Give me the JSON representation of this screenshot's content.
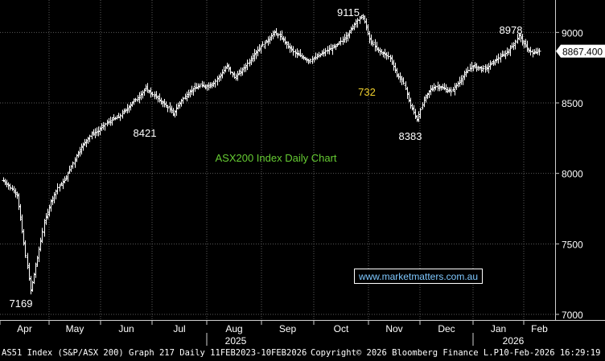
{
  "chart_data": {
    "type": "ohlc",
    "title": "ASX200 Index Daily Chart",
    "ylim": [
      6960,
      9230
    ],
    "y_ticks": [
      7000,
      7500,
      8000,
      8500,
      9000
    ],
    "x_month_labels": [
      "Apr",
      "May",
      "Jun",
      "Jul",
      "Aug",
      "Sep",
      "Oct",
      "Nov",
      "Dec",
      "Jan",
      "Feb"
    ],
    "year_labels": [
      "2025",
      "2026"
    ],
    "last_price": "8867.400",
    "annotations": [
      {
        "text": "7169",
        "color": "#ffffff"
      },
      {
        "text": "8421",
        "color": "#ffffff"
      },
      {
        "text": "9115",
        "color": "#ffffff"
      },
      {
        "text": "732",
        "color": "#f2d22e"
      },
      {
        "text": "8383",
        "color": "#ffffff"
      },
      {
        "text": "8978",
        "color": "#ffffff"
      }
    ],
    "watermark": "www.marketmatters.com.au",
    "closes_approx": [
      7950,
      7900,
      7850,
      7500,
      7169,
      7400,
      7650,
      7800,
      7900,
      7950,
      8050,
      8150,
      8220,
      8280,
      8300,
      8350,
      8380,
      8400,
      8450,
      8500,
      8550,
      8600,
      8560,
      8520,
      8480,
      8421,
      8500,
      8560,
      8600,
      8620,
      8620,
      8640,
      8700,
      8760,
      8680,
      8720,
      8780,
      8850,
      8900,
      8950,
      9000,
      8960,
      8900,
      8850,
      8830,
      8800,
      8820,
      8850,
      8880,
      8900,
      8950,
      9000,
      9080,
      9115,
      8950,
      8880,
      8850,
      8820,
      8700,
      8640,
      8480,
      8383,
      8520,
      8600,
      8620,
      8600,
      8580,
      8640,
      8700,
      8760,
      8750,
      8740,
      8780,
      8820,
      8850,
      8900,
      8978,
      8900,
      8850,
      8867
    ]
  },
  "footer": {
    "left": "AS51 Index (S&P/ASX 200) Graph 217 Daily 11FEB2023-10FEB2026",
    "center": "Copyright© 2026 Bloomberg Finance L.P.",
    "right": "10-Feb-2026 16:29:19"
  },
  "colors": {
    "background": "#000000",
    "bars": "#ffffff",
    "grid": "#5a5a5a",
    "title": "#66cc33",
    "highlight_label": "#f2d22e",
    "watermark": "#7fc8ff"
  }
}
